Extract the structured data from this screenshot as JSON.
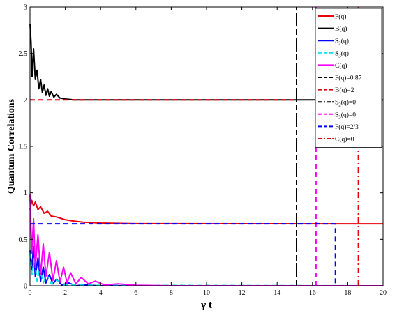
{
  "chart_data": {
    "type": "line",
    "title": "",
    "xlabel": "γ t",
    "ylabel": "Quantum Correlations",
    "xlim": [
      0,
      20
    ],
    "ylim": [
      0,
      3
    ],
    "xticks": [
      0,
      2,
      4,
      6,
      8,
      10,
      12,
      14,
      16,
      18,
      20
    ],
    "yticks": [
      0,
      0.5,
      1,
      1.5,
      2,
      2.5,
      3
    ],
    "xtick_labels": [
      "0",
      "2",
      "4",
      "6",
      "8",
      "10",
      "12",
      "14",
      "16",
      "18",
      "20"
    ],
    "ytick_labels": [
      "0",
      "0.5",
      "1",
      "1.5",
      "2",
      "2.5",
      "3"
    ],
    "grid": false,
    "legend_position": "top-right",
    "series": [
      {
        "name": "F(q)",
        "sub": "",
        "tail": "",
        "color": "#e8000b",
        "dash": "solid",
        "points": [
          [
            0,
            0.82
          ],
          [
            0.1,
            0.92
          ],
          [
            0.2,
            0.86
          ],
          [
            0.3,
            0.9
          ],
          [
            0.45,
            0.82
          ],
          [
            0.6,
            0.85
          ],
          [
            0.8,
            0.78
          ],
          [
            1.0,
            0.8
          ],
          [
            1.2,
            0.75
          ],
          [
            1.5,
            0.74
          ],
          [
            2,
            0.71
          ],
          [
            2.5,
            0.695
          ],
          [
            3,
            0.685
          ],
          [
            4,
            0.675
          ],
          [
            6,
            0.668
          ],
          [
            20,
            0.667
          ]
        ]
      },
      {
        "name": "B(q)",
        "sub": "",
        "tail": "",
        "color": "#000000",
        "dash": "solid",
        "points": [
          [
            0,
            2.82
          ],
          [
            0.06,
            2.62
          ],
          [
            0.12,
            2.25
          ],
          [
            0.2,
            2.55
          ],
          [
            0.3,
            2.22
          ],
          [
            0.4,
            2.32
          ],
          [
            0.5,
            2.12
          ],
          [
            0.6,
            2.22
          ],
          [
            0.7,
            2.08
          ],
          [
            0.8,
            2.16
          ],
          [
            0.9,
            2.05
          ],
          [
            1.0,
            2.12
          ],
          [
            1.1,
            2.04
          ],
          [
            1.2,
            2.09
          ],
          [
            1.35,
            2.03
          ],
          [
            1.5,
            2.06
          ],
          [
            1.7,
            2.02
          ],
          [
            2.0,
            2.01
          ],
          [
            2.5,
            2.0
          ],
          [
            3,
            2.0
          ],
          [
            20,
            2.0
          ]
        ]
      },
      {
        "name": "S",
        "sub": "2",
        "tail": "(q)",
        "color": "#0000ff",
        "dash": "solid",
        "points": [
          [
            0,
            0.38
          ],
          [
            0.1,
            0.18
          ],
          [
            0.2,
            0.42
          ],
          [
            0.3,
            0.1
          ],
          [
            0.45,
            0.3
          ],
          [
            0.6,
            0.05
          ],
          [
            0.75,
            0.2
          ],
          [
            0.9,
            0.03
          ],
          [
            1.1,
            0.12
          ],
          [
            1.3,
            0.02
          ],
          [
            1.5,
            0.07
          ],
          [
            1.8,
            0.01
          ],
          [
            2.2,
            0.03
          ],
          [
            2.6,
            0.0
          ],
          [
            3,
            0.01
          ],
          [
            4,
            0.0
          ],
          [
            20,
            0.0
          ]
        ]
      },
      {
        "name": "S",
        "sub": "3",
        "tail": "(q)",
        "color": "#00e5ee",
        "dash": "dash",
        "points": [
          [
            0,
            0.35
          ],
          [
            0.12,
            0.12
          ],
          [
            0.25,
            0.3
          ],
          [
            0.4,
            0.05
          ],
          [
            0.55,
            0.2
          ],
          [
            0.75,
            0.03
          ],
          [
            0.95,
            0.12
          ],
          [
            1.2,
            0.02
          ],
          [
            1.5,
            0.06
          ],
          [
            2,
            0.01
          ],
          [
            3,
            0.005
          ],
          [
            20,
            0.0
          ]
        ]
      },
      {
        "name": "C(q)",
        "sub": "",
        "tail": "",
        "color": "#ff00ff",
        "dash": "solid",
        "points": [
          [
            0,
            0.98
          ],
          [
            0.1,
            0.35
          ],
          [
            0.2,
            0.72
          ],
          [
            0.3,
            0.2
          ],
          [
            0.45,
            0.55
          ],
          [
            0.6,
            0.12
          ],
          [
            0.75,
            0.45
          ],
          [
            0.9,
            0.1
          ],
          [
            1.1,
            0.36
          ],
          [
            1.3,
            0.06
          ],
          [
            1.5,
            0.27
          ],
          [
            1.7,
            0.04
          ],
          [
            1.9,
            0.2
          ],
          [
            2.1,
            0.03
          ],
          [
            2.3,
            0.14
          ],
          [
            2.6,
            0.02
          ],
          [
            2.9,
            0.09
          ],
          [
            3.3,
            0.02
          ],
          [
            3.7,
            0.05
          ],
          [
            4.2,
            0.01
          ],
          [
            5,
            0.02
          ],
          [
            6,
            0.005
          ],
          [
            8,
            0.0
          ],
          [
            20,
            0.0
          ]
        ]
      },
      {
        "name": "F(q)=0.87",
        "sub": "",
        "tail": "",
        "color": "#000000",
        "dash": "dash",
        "points": [
          [
            15.1,
            0
          ],
          [
            15.1,
            3
          ]
        ]
      },
      {
        "name": "B(q)=2",
        "sub": "",
        "tail": "",
        "color": "#e8000b",
        "dash": "dash",
        "points": [
          [
            0,
            2
          ],
          [
            15.1,
            2
          ]
        ]
      },
      {
        "name": "S",
        "sub": "2",
        "tail": "(q)=0",
        "color": "#000000",
        "dash": "dashdot",
        "points": [
          [
            15.1,
            0
          ],
          [
            15.1,
            3
          ]
        ]
      },
      {
        "name": "S",
        "sub": "3",
        "tail": "(q)=0",
        "color": "#ff00ff",
        "dash": "dash",
        "points": [
          [
            16.2,
            0
          ],
          [
            16.2,
            3
          ]
        ]
      },
      {
        "name": "F(q)=2/3",
        "sub": "",
        "tail": "",
        "color": "#0000ff",
        "dash": "dash",
        "points": [
          [
            0,
            0.667
          ],
          [
            17.3,
            0.667
          ],
          [
            17.3,
            0
          ]
        ]
      },
      {
        "name": "C(q)=0",
        "sub": "",
        "tail": "",
        "color": "#e8000b",
        "dash": "dashdot",
        "points": [
          [
            18.6,
            0
          ],
          [
            18.6,
            3
          ]
        ]
      }
    ]
  }
}
